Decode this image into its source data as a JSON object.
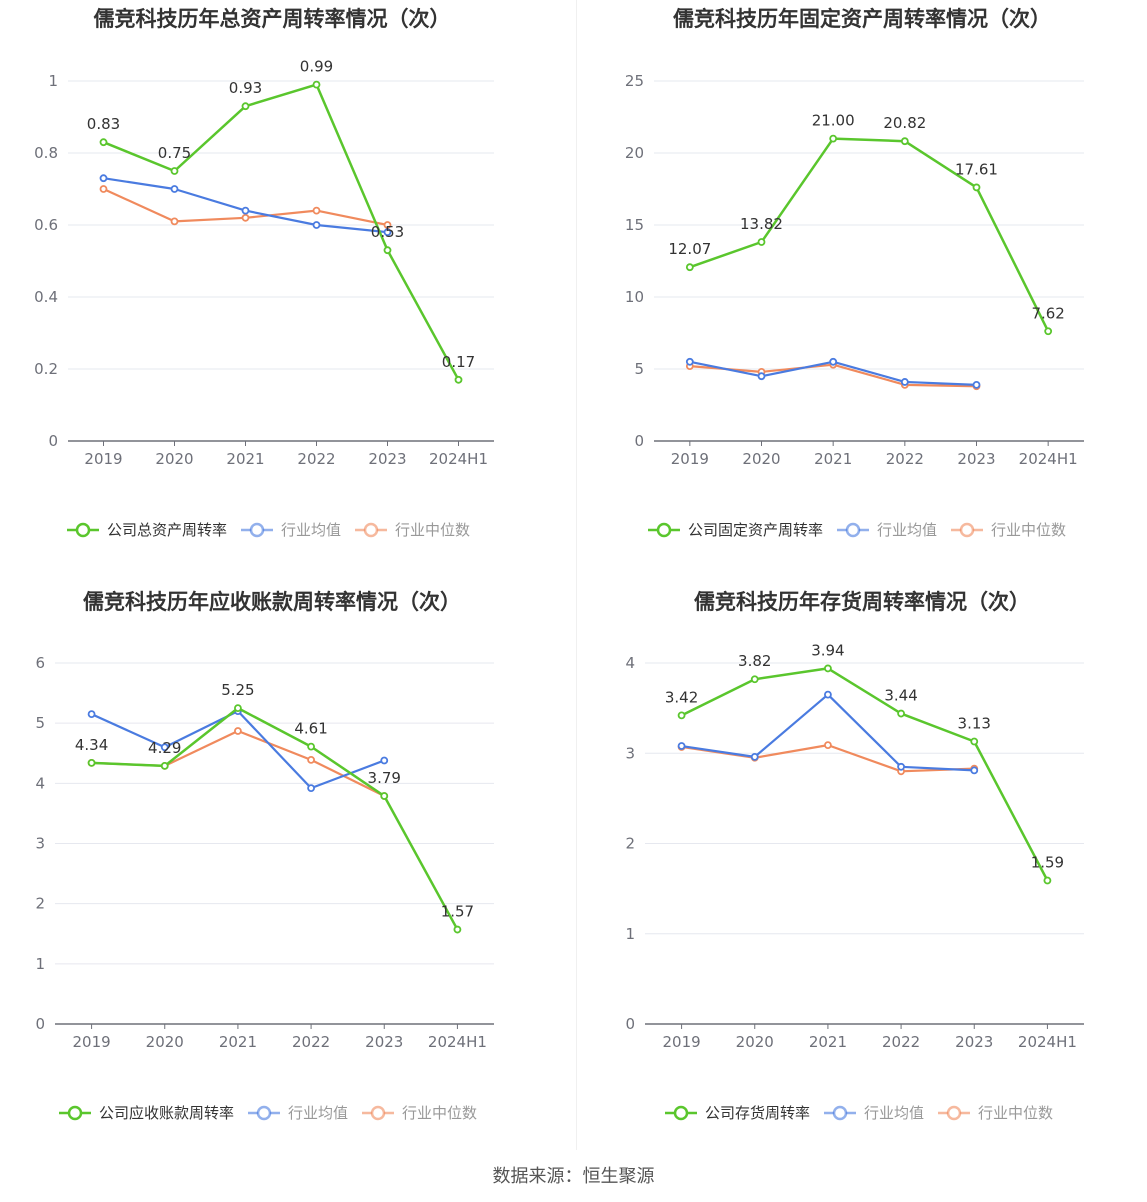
{
  "source": "数据来源：恒生聚源",
  "colors": {
    "company": "#5ac62d",
    "avg": "#4a7be0",
    "median": "#f08a5d"
  },
  "legend_common": {
    "avg": "行业均值",
    "median": "行业中位数"
  },
  "chart_data": [
    {
      "type": "line",
      "title": "儒竞科技历年总资产周转率情况（次）",
      "categories": [
        "2019",
        "2020",
        "2021",
        "2022",
        "2023",
        "2024H1"
      ],
      "ylim": [
        0,
        1
      ],
      "yticks": [
        0,
        0.2,
        0.4,
        0.6,
        0.8,
        1
      ],
      "ytick_labels": [
        "0",
        "0.2",
        "0.4",
        "0.6",
        "0.8",
        "1"
      ],
      "series": [
        {
          "name": "公司总资产周转率",
          "role": "company",
          "values": [
            0.83,
            0.75,
            0.93,
            0.99,
            0.53,
            0.17
          ],
          "labels": [
            "0.83",
            "0.75",
            "0.93",
            "0.99",
            "0.53",
            "0.17"
          ]
        },
        {
          "name": "行业均值",
          "role": "avg",
          "values": [
            0.73,
            0.7,
            0.64,
            0.6,
            0.58,
            null
          ]
        },
        {
          "name": "行业中位数",
          "role": "median",
          "values": [
            0.7,
            0.61,
            0.62,
            0.64,
            0.6,
            null
          ]
        }
      ],
      "legend": "bottom",
      "grid": true
    },
    {
      "type": "line",
      "title": "儒竞科技历年固定资产周转率情况（次）",
      "categories": [
        "2019",
        "2020",
        "2021",
        "2022",
        "2023",
        "2024H1"
      ],
      "ylim": [
        0,
        25
      ],
      "yticks": [
        0,
        5,
        10,
        15,
        20,
        25
      ],
      "ytick_labels": [
        "0",
        "5",
        "10",
        "15",
        "20",
        "25"
      ],
      "series": [
        {
          "name": "公司固定资产周转率",
          "role": "company",
          "values": [
            12.07,
            13.82,
            21.0,
            20.82,
            17.61,
            7.62
          ],
          "labels": [
            "12.07",
            "13.82",
            "21.00",
            "20.82",
            "17.61",
            "7.62"
          ]
        },
        {
          "name": "行业均值",
          "role": "avg",
          "values": [
            5.5,
            4.5,
            5.5,
            4.1,
            3.9,
            null
          ]
        },
        {
          "name": "行业中位数",
          "role": "median",
          "values": [
            5.2,
            4.8,
            5.3,
            3.9,
            3.8,
            null
          ]
        }
      ],
      "legend": "bottom",
      "grid": true
    },
    {
      "type": "line",
      "title": "儒竞科技历年应收账款周转率情况（次）",
      "categories": [
        "2019",
        "2020",
        "2021",
        "2022",
        "2023",
        "2024H1"
      ],
      "ylim": [
        0,
        6
      ],
      "yticks": [
        0,
        1,
        2,
        3,
        4,
        5,
        6
      ],
      "ytick_labels": [
        "0",
        "1",
        "2",
        "3",
        "4",
        "5",
        "6"
      ],
      "series": [
        {
          "name": "公司应收账款周转率",
          "role": "company",
          "values": [
            4.34,
            4.29,
            5.25,
            4.61,
            3.79,
            1.57
          ],
          "labels": [
            "4.34",
            "4.29",
            "5.25",
            "4.61",
            "3.79",
            "1.57"
          ]
        },
        {
          "name": "行业均值",
          "role": "avg",
          "values": [
            5.15,
            4.6,
            5.2,
            3.92,
            4.38,
            null
          ]
        },
        {
          "name": "行业中位数",
          "role": "median",
          "values": [
            4.34,
            4.29,
            4.87,
            4.39,
            3.79,
            null
          ]
        }
      ],
      "legend": "bottom",
      "grid": true
    },
    {
      "type": "line",
      "title": "儒竞科技历年存货周转率情况（次）",
      "categories": [
        "2019",
        "2020",
        "2021",
        "2022",
        "2023",
        "2024H1"
      ],
      "ylim": [
        0,
        4
      ],
      "yticks": [
        0,
        1,
        2,
        3,
        4
      ],
      "ytick_labels": [
        "0",
        "1",
        "2",
        "3",
        "4"
      ],
      "series": [
        {
          "name": "公司存货周转率",
          "role": "company",
          "values": [
            3.42,
            3.82,
            3.94,
            3.44,
            3.13,
            1.59
          ],
          "labels": [
            "3.42",
            "3.82",
            "3.94",
            "3.44",
            "3.13",
            "1.59"
          ]
        },
        {
          "name": "行业均值",
          "role": "avg",
          "values": [
            3.08,
            2.96,
            3.65,
            2.85,
            2.81,
            null
          ]
        },
        {
          "name": "行业中位数",
          "role": "median",
          "values": [
            3.07,
            2.95,
            3.09,
            2.8,
            2.83,
            null
          ]
        }
      ],
      "legend": "bottom",
      "grid": true
    }
  ]
}
